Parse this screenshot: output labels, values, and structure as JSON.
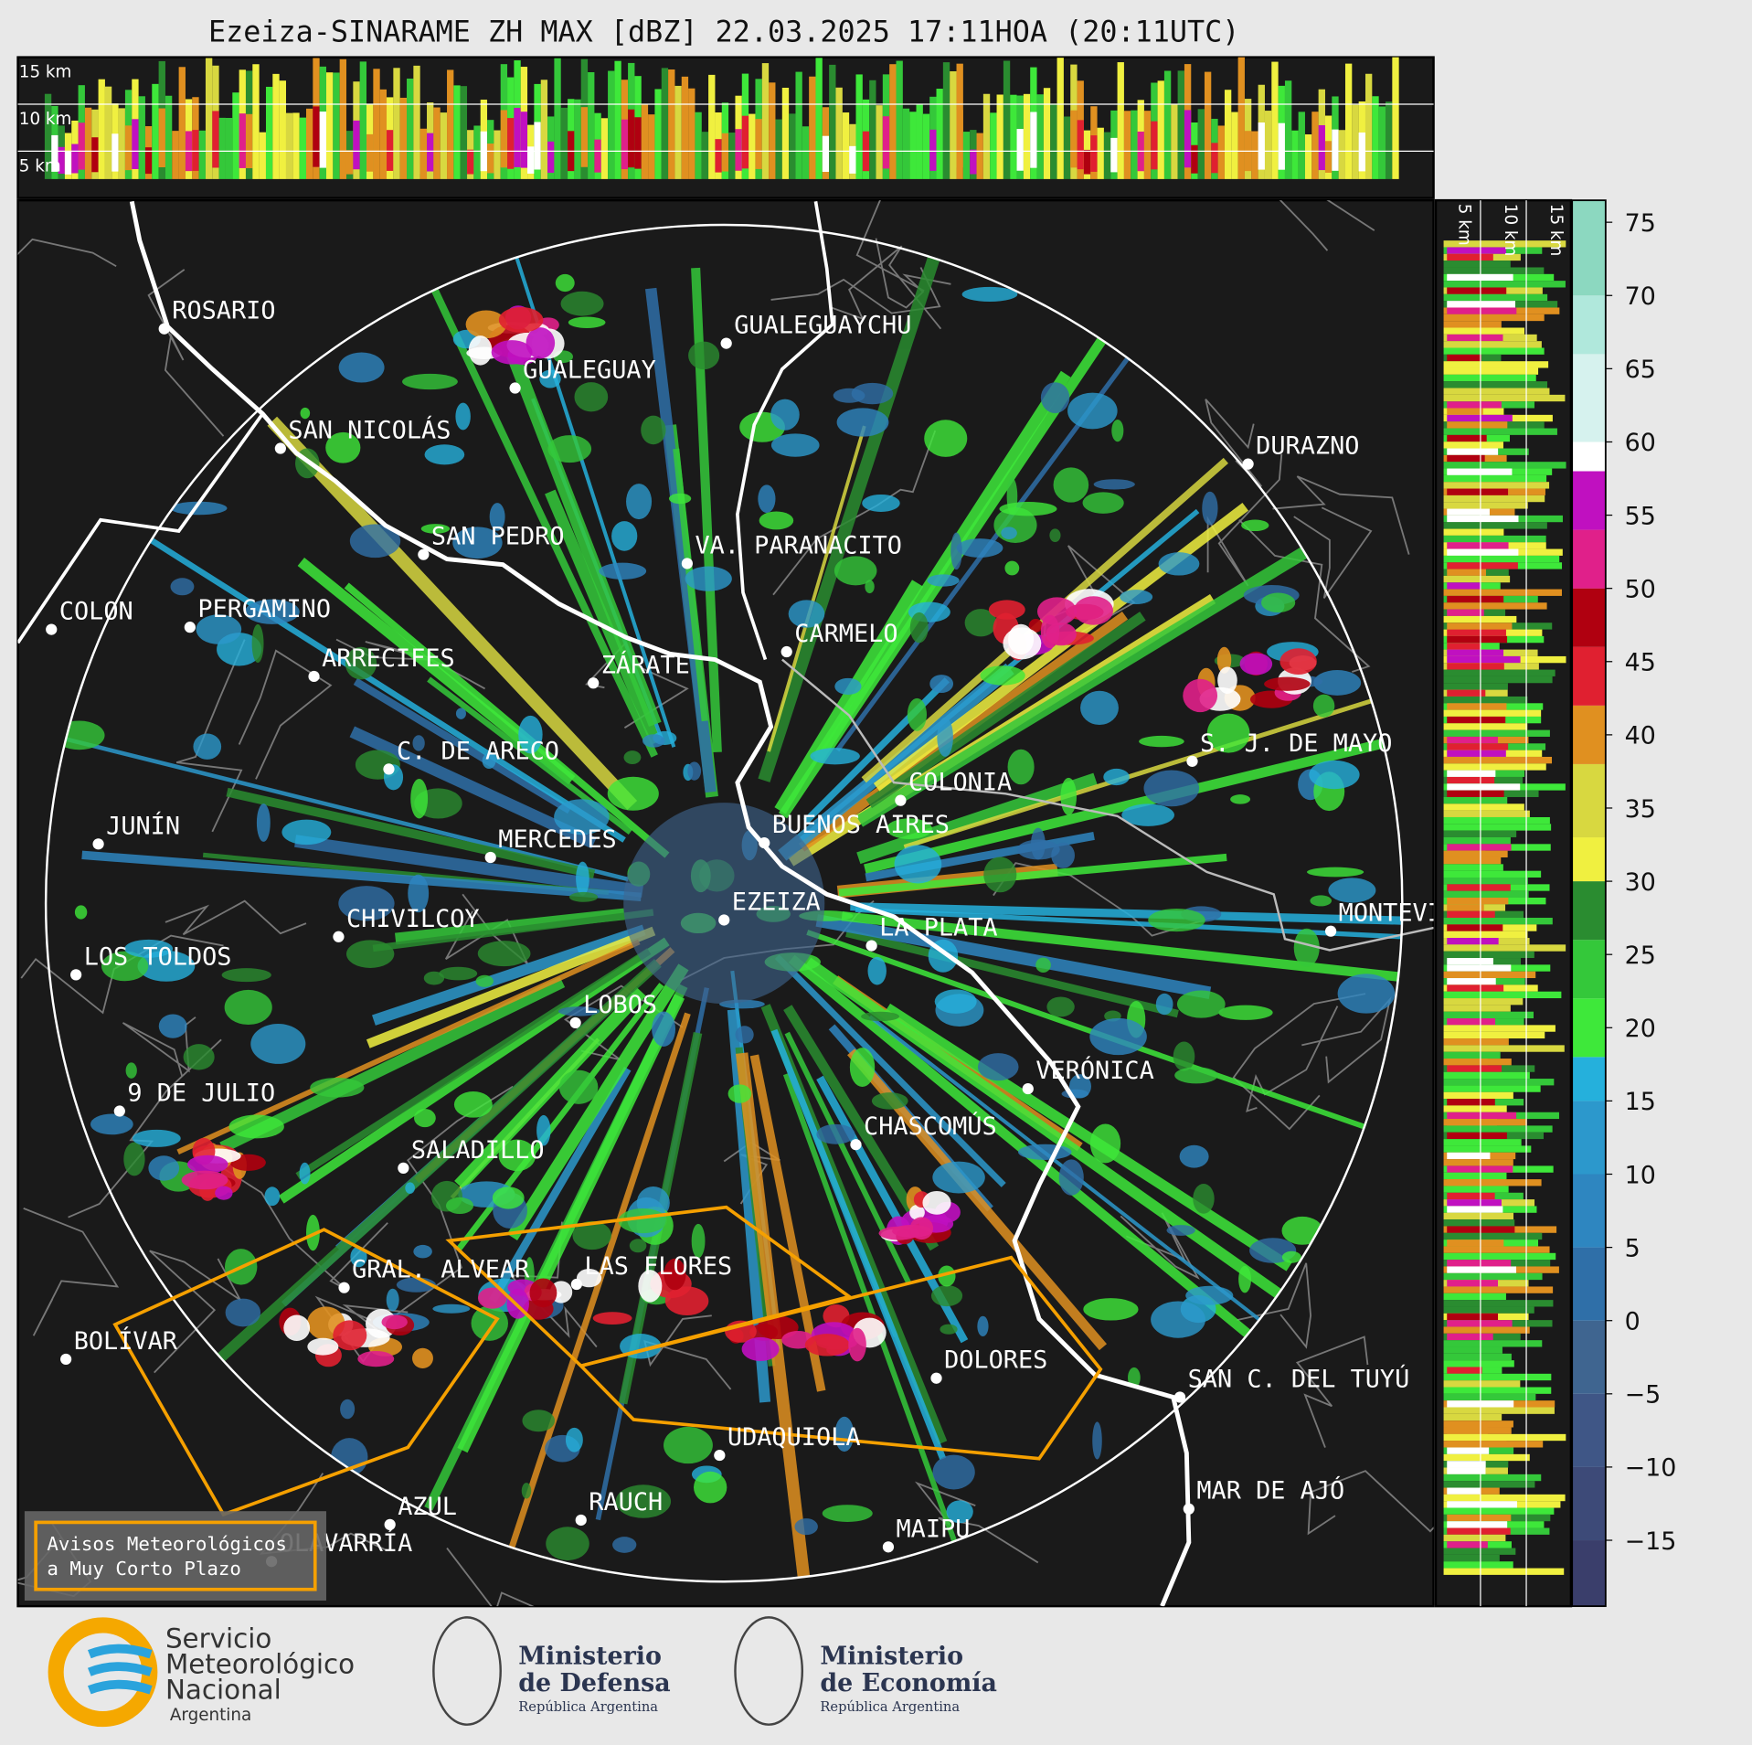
{
  "header": {
    "title": "Ezeiza-SINARAME ZH MAX [dBZ] 22.03.2025 17:11HOA (20:11UTC)"
  },
  "cross_section": {
    "top_labels": [
      "15 km",
      "10 km",
      "5 km"
    ],
    "side_labels": [
      "5 km",
      "10 km",
      "15 km"
    ]
  },
  "map": {
    "cities": [
      "ROSARIO",
      "GUALEGUAY",
      "GUALEGUAYCHU",
      "SAN NICOLÁS",
      "DURAZNO",
      "SAN PEDRO",
      "VA. PARANACITO",
      "COLON",
      "PERGAMINO",
      "CARMELO",
      "ARRECIFES",
      "ZÁRATE",
      "S. J. DE MAYO",
      "C. DE ARECO",
      "COLONIA",
      "JUNÍN",
      "BUENOS AIRES",
      "MERCEDES",
      "EZEIZA",
      "MONTEVIDEO",
      "CHIVILCOY",
      "LA PLATA",
      "LOS TOLDOS",
      "LOBOS",
      "VERÓNICA",
      "9 DE JULIO",
      "CHASCOMÚS",
      "SALADILLO",
      "GRAL. ALVEAR",
      "LAS FLORES",
      "BOLÍVAR",
      "DOLORES",
      "SAN C. DEL TUYÚ",
      "UDAQUIOLA",
      "MAR DE AJÓ",
      "RAUCH",
      "AZUL",
      "OLAVARRÍA",
      "MAIPU"
    ]
  },
  "colorbar": {
    "range": [
      -19.5,
      76.5
    ],
    "ticks": [
      75,
      70,
      65,
      60,
      55,
      50,
      45,
      40,
      35,
      30,
      25,
      20,
      15,
      10,
      5,
      0,
      {
        "value": -5,
        "label": "−5"
      },
      {
        "value": -10,
        "label": "−10"
      },
      {
        "value": -15,
        "label": "−15"
      }
    ],
    "bounds": [
      -19.5,
      -15,
      -10,
      -5,
      0,
      5,
      10,
      15,
      18,
      22,
      26,
      30,
      33,
      38,
      42,
      46,
      50,
      54,
      58,
      60,
      66,
      70,
      76.5
    ],
    "colors": [
      "#3a3e6b",
      "#3d4a78",
      "#3f5686",
      "#3f6590",
      "#2f6fa8",
      "#2e86c0",
      "#2c98cc",
      "#25b0dc",
      "#3ee83a",
      "#34c83a",
      "#2a8c30",
      "#f0f040",
      "#d8d840",
      "#e09020",
      "#e02030",
      "#b00010",
      "#e0208a",
      "#c010c0",
      "#ffffff",
      "#d6f2ee",
      "#b0e8dc",
      "#8cd8c0"
    ]
  },
  "warning_legend": {
    "lines": [
      "Avisos Meteorológicos",
      "a Muy Corto Plazo"
    ]
  },
  "footer": {
    "logos": [
      {
        "lines": [
          "Servicio",
          "Meteorológico",
          "Nacional",
          "Argentina"
        ]
      },
      {
        "lines": [
          "Ministerio",
          "de Defensa",
          "República Argentina"
        ]
      },
      {
        "lines": [
          "Ministerio",
          "de Economía",
          "República Argentina"
        ]
      }
    ]
  }
}
